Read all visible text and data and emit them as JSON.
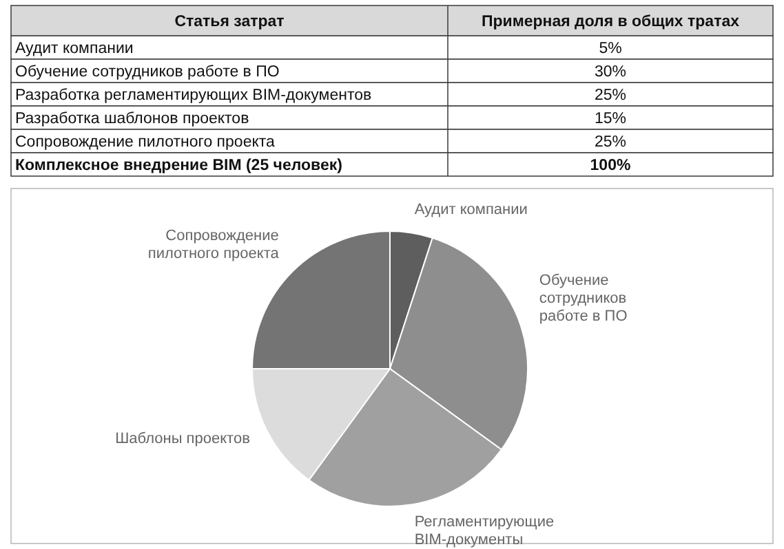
{
  "chart_data": [
    {
      "type": "other",
      "annotations": [
        "Статья затрат",
        "Примерная доля в общих тратах",
        "Аудит компании",
        "5%",
        "Обучение сотрудников работе в ПО",
        "30%",
        "Разработка регламентирующих BIM-документов",
        "25%",
        "Разработка шаблонов проектов",
        "15%",
        "Сопровождение пилотного проекта",
        "25%",
        "Комплексное внедрение BIM (25 человек)",
        "100%"
      ]
    },
    {
      "type": "pie",
      "categories": [
        "Аудит компании",
        "Обучение сотрудников работе в ПО",
        "Регламентирующие BIM-документы",
        "Шаблоны проектов",
        "Сопровождение пилотного проекта"
      ],
      "values": [
        5,
        30,
        25,
        15,
        25
      ],
      "colors": [
        "#5e5e5e",
        "#8e8e8e",
        "#a0a0a0",
        "#dcdcdc",
        "#747474"
      ]
    }
  ]
}
